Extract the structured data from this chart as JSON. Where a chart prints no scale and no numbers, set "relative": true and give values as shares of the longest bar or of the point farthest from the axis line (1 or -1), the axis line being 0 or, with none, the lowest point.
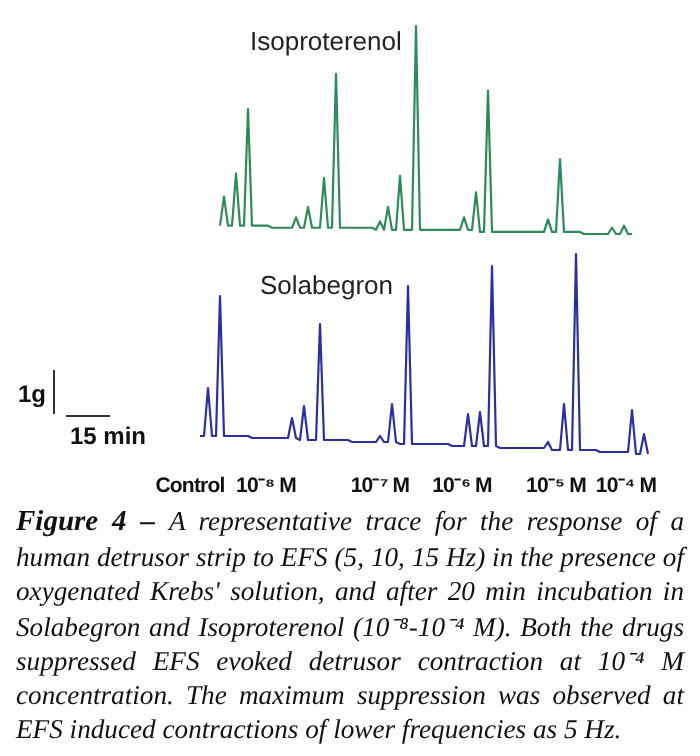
{
  "chart_data": [
    {
      "type": "line",
      "title": "Isoproterenol",
      "relative": true,
      "categories": [
        null,
        null,
        null,
        null,
        null,
        null,
        null,
        null,
        null,
        null,
        null,
        null,
        null,
        null,
        null,
        null,
        null,
        null,
        null,
        null,
        null,
        null,
        null,
        null,
        null,
        null,
        null,
        null,
        null,
        null,
        null,
        null,
        null,
        null,
        null,
        null,
        null,
        null,
        null,
        null,
        null,
        null,
        null,
        null,
        null,
        null,
        null,
        null,
        null,
        null,
        null,
        null,
        null,
        null,
        null,
        null,
        null,
        null,
        null,
        null,
        null,
        null,
        null,
        null,
        null,
        null,
        null,
        null,
        null,
        null,
        null,
        null,
        null,
        null,
        null,
        null,
        null,
        null,
        null,
        null,
        null,
        null,
        null,
        null,
        null,
        null,
        null,
        null,
        null,
        null,
        null,
        null,
        null,
        null,
        null,
        null,
        null,
        null,
        null,
        null,
        null,
        null,
        null,
        null
      ],
      "series": [
        {
          "color": "#2f8a5a",
          "values": [
            0.04,
            0.18,
            0.04,
            0.04,
            0.29,
            0.04,
            0.04,
            0.6,
            0.04,
            0.04,
            0.04,
            0.04,
            0.04,
            0.03,
            0.03,
            0.03,
            0.03,
            0.03,
            0.03,
            0.08,
            0.03,
            0.03,
            0.13,
            0.03,
            0.03,
            0.03,
            0.27,
            0.03,
            0.03,
            0.77,
            0.03,
            0.03,
            0.03,
            0.03,
            0.03,
            0.03,
            0.03,
            0.03,
            0.03,
            0.02,
            0.06,
            0.02,
            0.13,
            0.02,
            0.02,
            0.28,
            0.02,
            0.02,
            0.02,
            1,
            0.02,
            0.02,
            0.02,
            0.02,
            0.02,
            0.02,
            0.02,
            0.02,
            0.02,
            0.02,
            0.02,
            0.08,
            0.02,
            0.02,
            0.2,
            0.01,
            0.01,
            0.69,
            0.01,
            0.01,
            0.01,
            0.01,
            0.01,
            0.01,
            0.01,
            0.01,
            0.01,
            0.01,
            0.01,
            0.01,
            0.01,
            0.01,
            0.07,
            0.01,
            0.01,
            0.36,
            0.01,
            0.01,
            0.01,
            0.01,
            0.01,
            0,
            0,
            0,
            0,
            0,
            0,
            0,
            0.03,
            0,
            0,
            0.04,
            0,
            0
          ]
        }
      ]
    },
    {
      "type": "line",
      "title": "Solabegron",
      "relative": true,
      "categories": [
        null,
        null,
        null,
        null,
        null,
        null,
        null,
        null,
        null,
        null,
        null,
        null,
        null,
        null,
        null,
        null,
        null,
        null,
        null,
        null,
        null,
        null,
        null,
        null,
        null,
        null,
        null,
        null,
        null,
        null,
        null,
        null,
        null,
        null,
        null,
        null,
        null,
        null,
        null,
        null,
        null,
        null,
        null,
        null,
        null,
        null,
        null,
        null,
        null,
        null,
        null,
        null,
        null,
        null,
        null,
        null,
        null,
        null,
        null,
        null,
        null,
        null,
        null,
        null,
        null,
        null,
        null,
        null,
        null,
        null,
        null,
        null,
        null,
        null,
        null,
        null,
        null,
        null,
        null,
        null,
        null,
        null,
        null,
        null,
        null,
        null,
        null,
        null,
        null,
        null,
        null,
        null,
        null,
        null,
        null,
        null,
        null,
        null,
        null,
        null,
        null,
        null,
        null,
        null,
        null,
        null,
        null,
        null,
        null,
        null,
        null,
        null,
        null
      ],
      "series": [
        {
          "color": "#2c2fa0",
          "values": [
            0.09,
            0.09,
            0.33,
            0.09,
            0.09,
            0.79,
            0.09,
            0.09,
            0.09,
            0.09,
            0.09,
            0.09,
            0.09,
            0.08,
            0.08,
            0.08,
            0.08,
            0.08,
            0.08,
            0.08,
            0.08,
            0.08,
            0.08,
            0.18,
            0.08,
            0.07,
            0.24,
            0.07,
            0.07,
            0.07,
            0.65,
            0.07,
            0.07,
            0.07,
            0.07,
            0.07,
            0.07,
            0.07,
            0.06,
            0.06,
            0.06,
            0.06,
            0.06,
            0.06,
            0.06,
            0.09,
            0.06,
            0.06,
            0.25,
            0.06,
            0.05,
            0.05,
            0.84,
            0.05,
            0.05,
            0.05,
            0.05,
            0.05,
            0.05,
            0.05,
            0.05,
            0.05,
            0.05,
            0.04,
            0.04,
            0.04,
            0.04,
            0.2,
            0.04,
            0.04,
            0.21,
            0.04,
            0.04,
            0.94,
            0.04,
            0.03,
            0.03,
            0.03,
            0.03,
            0.03,
            0.03,
            0.03,
            0.03,
            0.03,
            0.03,
            0.03,
            0.03,
            0.06,
            0.02,
            0.02,
            0.02,
            0.25,
            0.02,
            0.02,
            1,
            0.02,
            0.02,
            0.02,
            0.02,
            0.02,
            0.01,
            0.01,
            0.01,
            0.01,
            0.01,
            0.01,
            0.01,
            0.01,
            0.22,
            0,
            0,
            0.1,
            0
          ]
        }
      ],
      "annotations": [
        "1g",
        "15 min",
        "Control",
        "10⁻⁸ M",
        "10⁻⁷ M",
        "10⁻⁶ M",
        "10⁻⁵ M",
        "10⁻⁴ M",
        "Figure 4 –",
        "A representative trace for the response of a human detrusor strip to EFS (5, 10, 15 Hz) in the presence of oxygenated Krebs' solution, and after 20 min incubation in Solabegron and Isoproterenol (10⁻⁸-10⁻⁴ M). Both the drugs suppressed EFS evoked detrusor contraction at 10⁻⁴ M concentration. The maximum suppression was observed at EFS induced contractions of lower frequencies as 5 Hz."
      ]
    }
  ]
}
